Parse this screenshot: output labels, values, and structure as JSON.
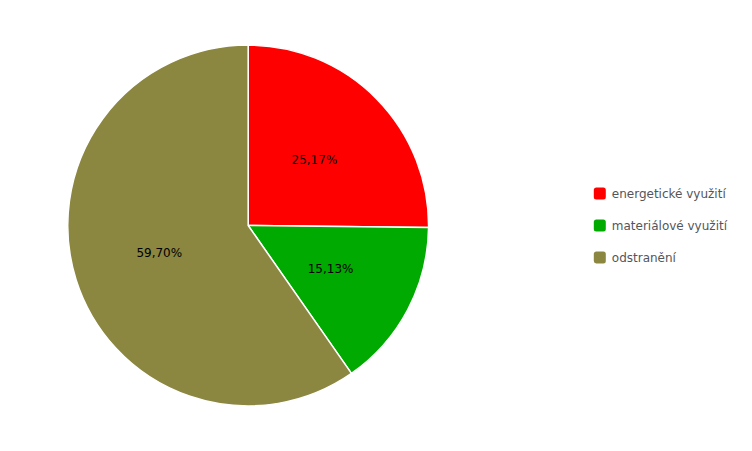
{
  "chart_data": {
    "type": "pie",
    "categories": [
      "energetické využití",
      "materiálové využití",
      "odstranění"
    ],
    "values": [
      25.17,
      15.13,
      59.7
    ],
    "value_labels": [
      "25,17%",
      "15,13%",
      "59,70%"
    ],
    "colors": [
      "#ff0000",
      "#00aa00",
      "#8b8640"
    ],
    "data_labels": true,
    "legend": "right"
  }
}
